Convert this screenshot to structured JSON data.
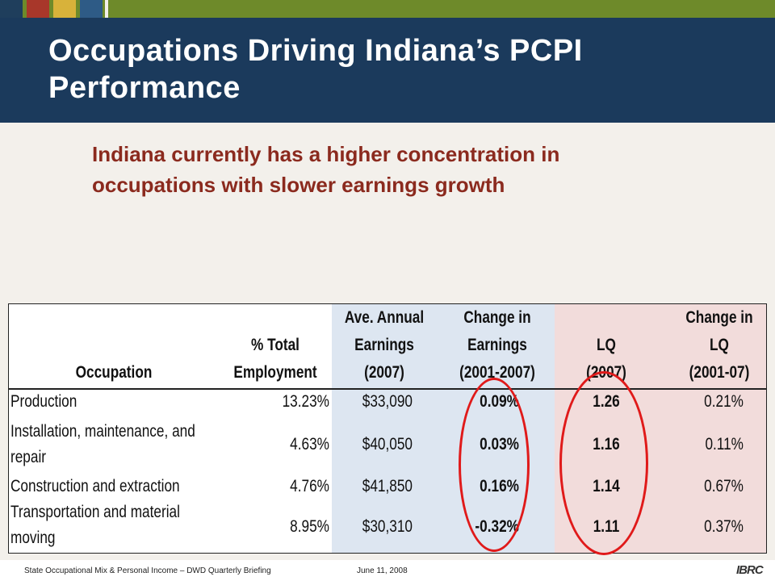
{
  "title_line1": "Occupations Driving Indiana’s PCPI",
  "title_line2": "Performance",
  "subtitle_line1": "Indiana currently has a higher concentration in",
  "subtitle_line2": "occupations with slower earnings growth",
  "table": {
    "headers": {
      "occupation": [
        "Occupation"
      ],
      "pct_employment": [
        "% Total",
        "Employment"
      ],
      "earnings": [
        "Ave. Annual",
        "Earnings",
        "(2007)"
      ],
      "change_earnings": [
        "Change in",
        "Earnings",
        "(2001-2007)"
      ],
      "lq": [
        "LQ",
        "(2007)"
      ],
      "change_lq": [
        "Change in",
        "LQ",
        "(2001-07)"
      ]
    },
    "rows": [
      {
        "occupation": [
          "Production"
        ],
        "pct": "13.23%",
        "earnings": "$33,090",
        "chg_earn": "0.09%",
        "lq": "1.26",
        "chg_lq": "0.21%"
      },
      {
        "occupation": [
          "Installation, maintenance, and",
          "repair"
        ],
        "pct": "4.63%",
        "earnings": "$40,050",
        "chg_earn": "0.03%",
        "lq": "1.16",
        "chg_lq": "0.11%"
      },
      {
        "occupation": [
          "Construction and extraction"
        ],
        "pct": "4.76%",
        "earnings": "$41,850",
        "chg_earn": "0.16%",
        "lq": "1.14",
        "chg_lq": "0.67%"
      },
      {
        "occupation": [
          "Transportation and material",
          "moving"
        ],
        "pct": "8.95%",
        "earnings": "$30,310",
        "chg_earn": "-0.32%",
        "lq": "1.11",
        "chg_lq": "0.37%"
      }
    ]
  },
  "footer": {
    "left": "State Occupational Mix & Personal Income – DWD Quarterly Briefing",
    "date": "June 11, 2008",
    "logo": "IBRC"
  },
  "colors": {
    "header_bg": "#1b3a5c",
    "subtitle": "#8b2a1e",
    "highlight_ellipse": "#e01a1a",
    "earnings_bg": "#dde6f1",
    "lq_bg": "#f2dcdb"
  }
}
